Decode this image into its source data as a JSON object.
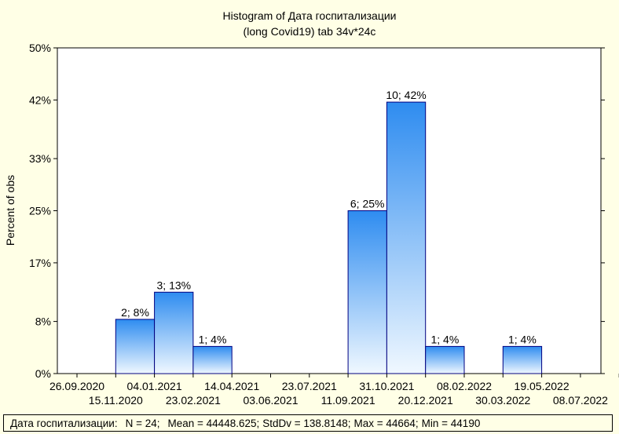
{
  "chart_data": {
    "type": "bar",
    "title_line1": "Histogram of Дата госпитализации",
    "title_line2": "(long Covid19) tab 34v*24c",
    "xlabel": "",
    "ylabel": "Percent of obs",
    "ylim": [
      0,
      50
    ],
    "y_ticks": [
      0,
      8,
      17,
      25,
      33,
      42,
      50
    ],
    "y_tick_labels": [
      "0%",
      "8%",
      "17%",
      "25%",
      "33%",
      "42%",
      "50%"
    ],
    "x_tick_labels_upper": [
      "26.09.2020",
      "04.01.2021",
      "14.04.2021",
      "23.07.2021",
      "31.10.2021",
      "08.02.2022",
      "19.05.2022"
    ],
    "x_tick_labels_lower": [
      "15.11.2020",
      "23.02.2021",
      "03.06.2021",
      "11.09.2021",
      "20.12.2021",
      "30.03.2022",
      "08.07.2022"
    ],
    "bins": [
      {
        "count": 0,
        "percent": 0,
        "label": ""
      },
      {
        "count": 2,
        "percent": 8.33,
        "label": "2; 8%"
      },
      {
        "count": 3,
        "percent": 12.5,
        "label": "3; 13%"
      },
      {
        "count": 1,
        "percent": 4.17,
        "label": "1; 4%"
      },
      {
        "count": 0,
        "percent": 0,
        "label": ""
      },
      {
        "count": 0,
        "percent": 0,
        "label": ""
      },
      {
        "count": 0,
        "percent": 0,
        "label": ""
      },
      {
        "count": 6,
        "percent": 25,
        "label": "6; 25%"
      },
      {
        "count": 10,
        "percent": 41.67,
        "label": "10; 42%"
      },
      {
        "count": 1,
        "percent": 4.17,
        "label": "1; 4%"
      },
      {
        "count": 0,
        "percent": 0,
        "label": ""
      },
      {
        "count": 1,
        "percent": 4.17,
        "label": "1; 4%"
      },
      {
        "count": 0,
        "percent": 0,
        "label": ""
      },
      {
        "count": 0,
        "percent": 0,
        "label": ""
      }
    ],
    "grid": false,
    "bar_color_top": "#2e8cf0",
    "bar_color_bottom": "#f0f8ff",
    "bar_outline": "#000080",
    "background": "#ffffe6",
    "plot_background": "#ffffff"
  },
  "stats": {
    "variable": "Дата госпитализации:",
    "n": "N = 24;",
    "mean": "Mean = 44448.625;",
    "stddev": "StdDv = 138.8148;",
    "max": "Max = 44664;",
    "min": "Min = 44190"
  }
}
